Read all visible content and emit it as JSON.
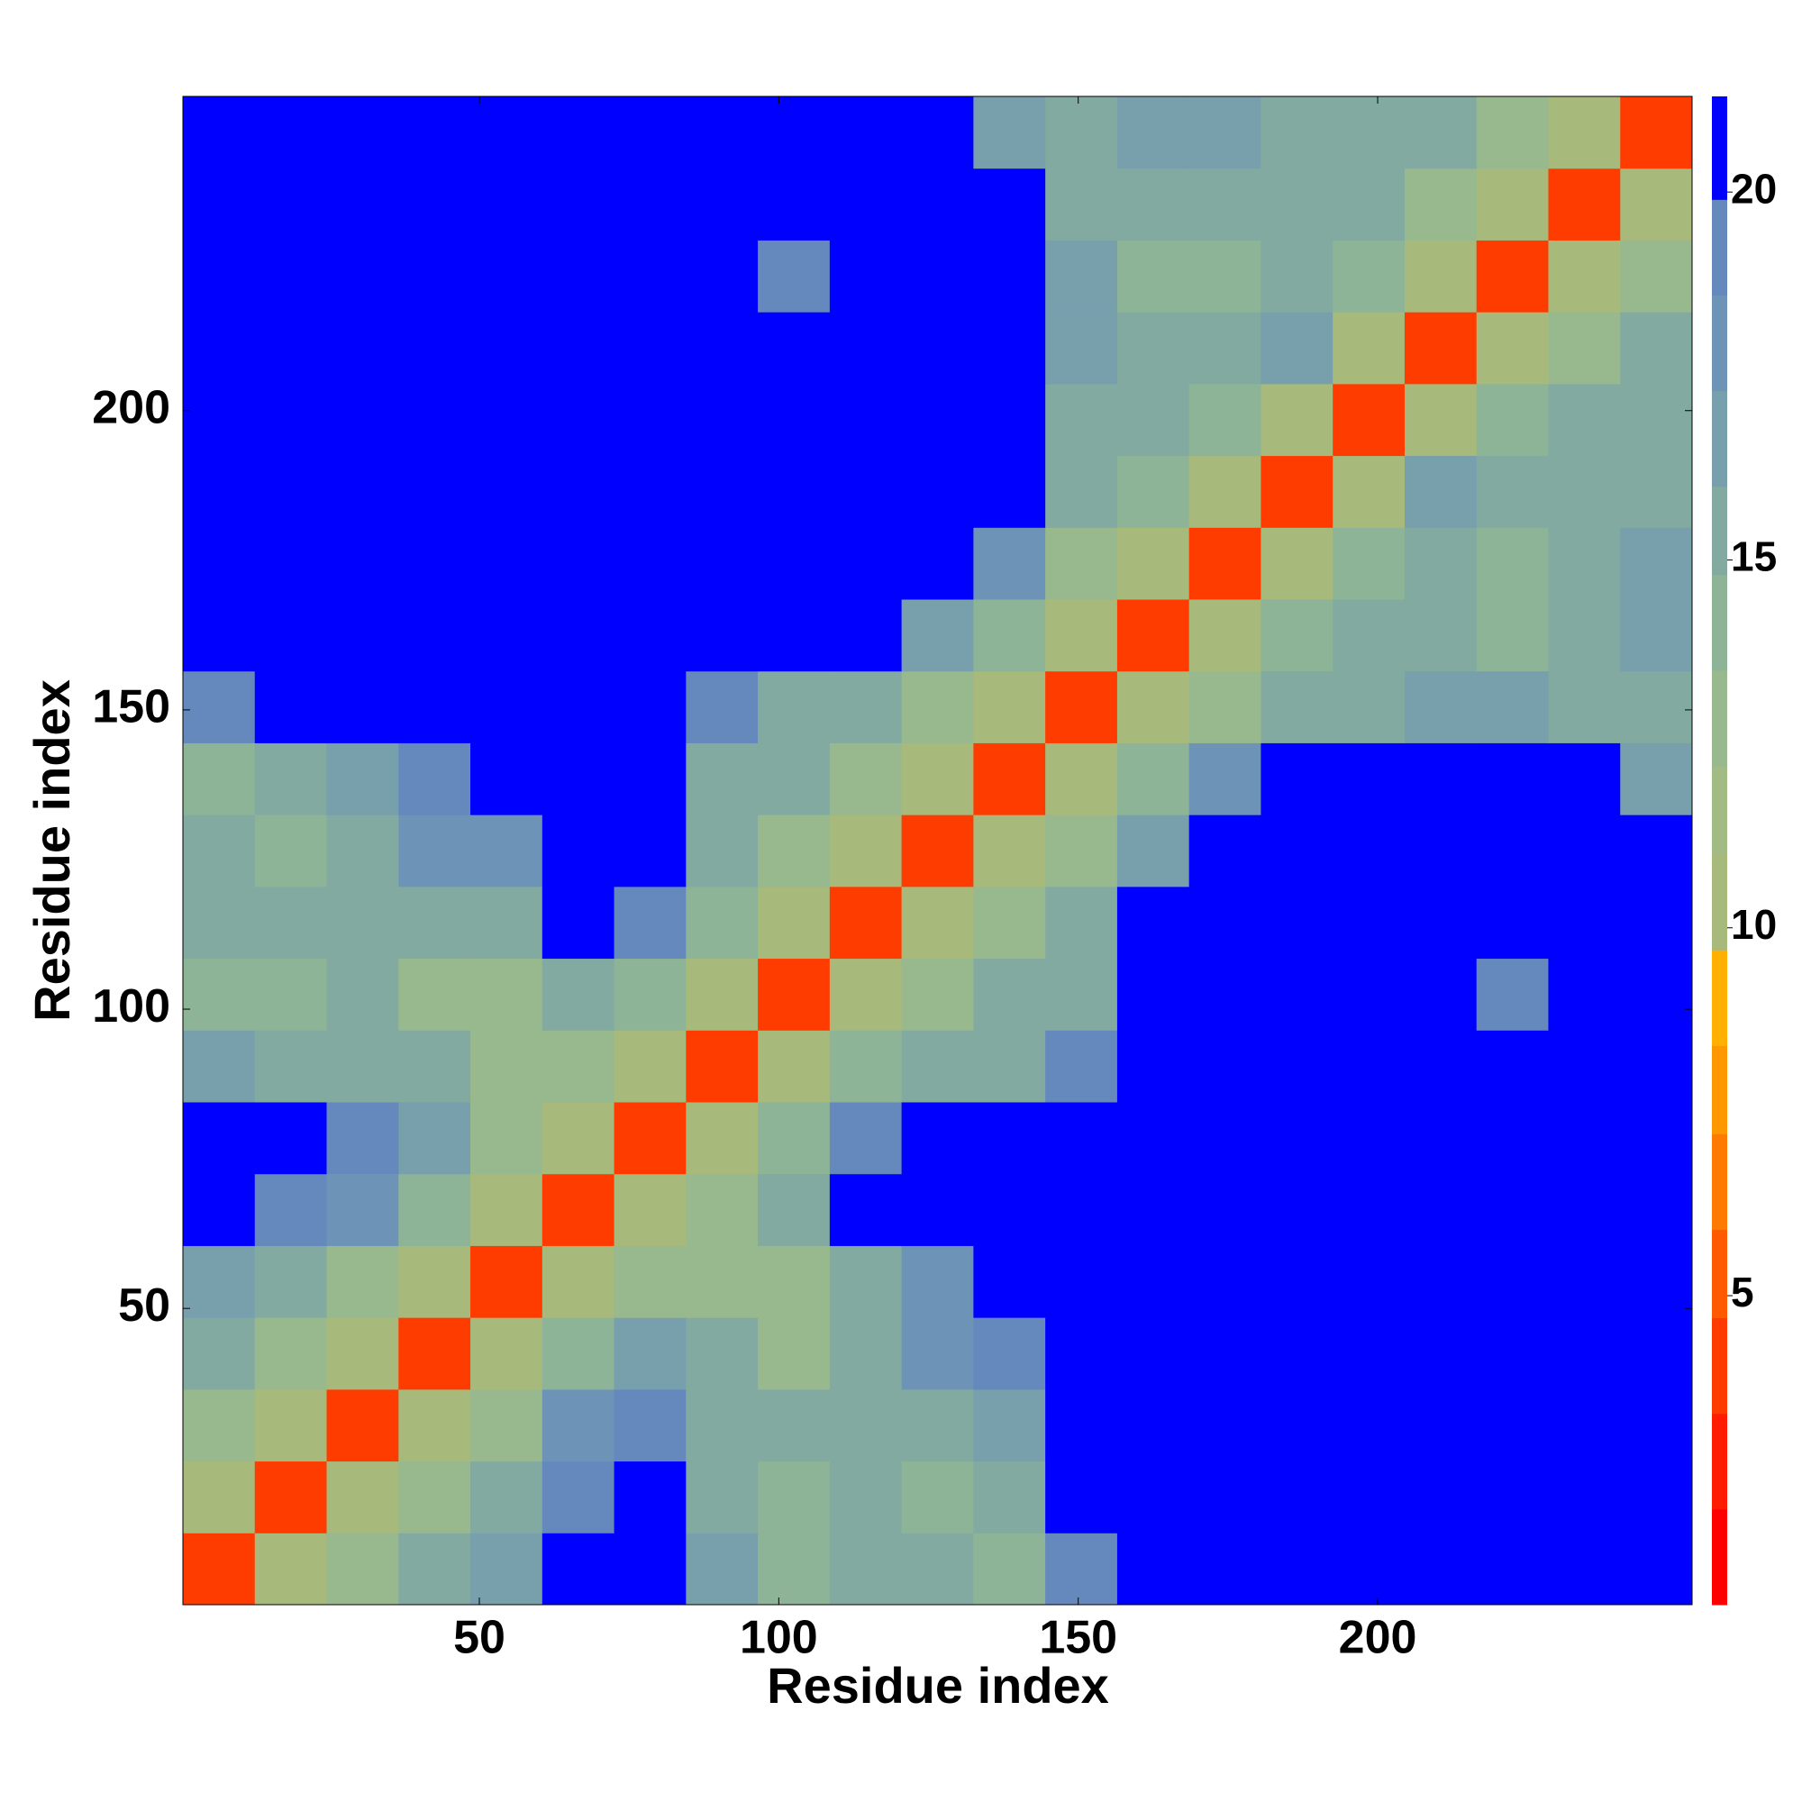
{
  "chart_data": {
    "type": "heatmap",
    "xlabel": "Residue index",
    "ylabel": "Residue index",
    "xlim": [
      0.5,
      252.5
    ],
    "ylim": [
      0.5,
      252.5
    ],
    "xticks": [
      50,
      100,
      150,
      200
    ],
    "yticks": [
      50,
      100,
      150,
      200
    ],
    "x_edges": [
      0.5,
      12.5,
      24.5,
      36.5,
      48.5,
      60.5,
      72.5,
      84.5,
      96.5,
      108.5,
      120.5,
      132.5,
      144.5,
      156.5,
      168.5,
      180.5,
      192.5,
      204.5,
      216.5,
      228.5,
      240.5,
      252.5
    ],
    "y_edges": [
      0.5,
      12.5,
      24.5,
      36.5,
      48.5,
      60.5,
      72.5,
      84.5,
      96.5,
      108.5,
      120.5,
      132.5,
      144.5,
      156.5,
      168.5,
      180.5,
      192.5,
      204.5,
      216.5,
      228.5,
      240.5,
      252.5
    ],
    "z": [
      [
        4,
        11,
        13,
        15,
        17,
        21,
        21,
        17,
        14,
        15,
        15,
        14,
        19,
        21,
        21,
        21,
        21,
        21,
        21,
        21,
        21
      ],
      [
        11,
        4,
        11,
        13,
        15,
        19,
        21,
        16,
        14,
        15,
        14,
        15,
        21,
        21,
        21,
        21,
        21,
        21,
        21,
        21,
        21
      ],
      [
        13,
        11,
        4,
        11,
        13,
        18,
        19,
        16,
        15,
        16,
        16,
        17,
        21,
        21,
        21,
        21,
        21,
        21,
        21,
        21,
        21
      ],
      [
        15,
        13,
        11,
        4,
        11,
        14,
        17,
        15,
        13,
        15,
        18,
        19,
        21,
        21,
        21,
        21,
        21,
        21,
        21,
        21,
        21
      ],
      [
        17,
        15,
        13,
        11,
        4,
        11,
        13,
        13,
        13,
        16,
        18,
        20,
        21,
        21,
        21,
        21,
        21,
        21,
        21,
        21,
        21
      ],
      [
        21,
        19,
        18,
        14,
        11,
        4,
        11,
        13,
        15,
        20,
        21,
        21,
        21,
        21,
        21,
        21,
        21,
        21,
        21,
        21,
        21
      ],
      [
        21,
        21,
        19,
        17,
        13,
        11,
        4,
        11,
        14,
        19,
        21,
        21,
        21,
        21,
        21,
        21,
        21,
        21,
        21,
        21,
        21
      ],
      [
        17,
        16,
        16,
        15,
        13,
        13,
        11,
        4,
        11,
        14,
        15,
        16,
        19,
        21,
        21,
        21,
        21,
        21,
        21,
        21,
        21
      ],
      [
        14,
        14,
        15,
        13,
        13,
        15,
        14,
        11,
        4,
        11,
        13,
        15,
        16,
        21,
        20,
        21,
        21,
        21,
        19,
        21,
        21
      ],
      [
        15,
        15,
        16,
        15,
        16,
        20,
        19,
        14,
        11,
        4,
        11,
        13,
        16,
        20,
        21,
        21,
        21,
        21,
        21,
        21,
        21
      ],
      [
        15,
        14,
        16,
        18,
        18,
        21,
        21,
        15,
        13,
        11,
        4,
        11,
        13,
        17,
        21,
        21,
        21,
        21,
        21,
        21,
        21
      ],
      [
        14,
        15,
        17,
        19,
        20,
        21,
        21,
        16,
        15,
        13,
        11,
        4,
        11,
        14,
        18,
        21,
        21,
        21,
        21,
        21,
        17
      ],
      [
        19,
        21,
        21,
        21,
        21,
        21,
        21,
        19,
        16,
        16,
        13,
        11,
        4,
        11,
        13,
        15,
        16,
        17,
        17,
        16,
        16
      ],
      [
        21,
        21,
        21,
        21,
        21,
        21,
        21,
        21,
        21,
        20,
        17,
        14,
        11,
        4,
        11,
        14,
        15,
        16,
        14,
        16,
        17
      ],
      [
        21,
        21,
        21,
        21,
        21,
        21,
        21,
        21,
        20,
        21,
        21,
        18,
        13,
        11,
        4,
        11,
        14,
        15,
        14,
        15,
        17
      ],
      [
        21,
        21,
        21,
        21,
        21,
        21,
        21,
        21,
        21,
        21,
        21,
        21,
        15,
        14,
        11,
        4,
        11,
        17,
        16,
        15,
        16
      ],
      [
        21,
        21,
        21,
        21,
        21,
        21,
        21,
        21,
        21,
        21,
        21,
        21,
        16,
        15,
        14,
        11,
        4,
        11,
        14,
        15,
        16
      ],
      [
        21,
        21,
        21,
        21,
        21,
        21,
        21,
        21,
        21,
        21,
        21,
        21,
        17,
        16,
        15,
        17,
        11,
        4,
        11,
        13,
        15
      ],
      [
        21,
        21,
        21,
        21,
        21,
        21,
        21,
        21,
        19,
        21,
        21,
        21,
        17,
        14,
        14,
        16,
        14,
        11,
        4,
        11,
        13
      ],
      [
        21,
        21,
        21,
        21,
        21,
        21,
        21,
        21,
        21,
        21,
        21,
        21,
        16,
        16,
        15,
        15,
        15,
        13,
        11,
        4,
        11
      ],
      [
        21,
        21,
        21,
        21,
        21,
        21,
        21,
        21,
        21,
        21,
        21,
        17,
        16,
        17,
        17,
        16,
        16,
        15,
        13,
        11,
        4
      ]
    ],
    "colorbar": {
      "clim": [
        0.8,
        21.3
      ],
      "ticks": [
        5,
        10,
        15,
        20
      ],
      "levels": [
        0.8,
        2.1,
        3.4,
        4.7,
        5.9,
        7.2,
        8.4,
        9.7,
        11,
        12.2,
        13.5,
        14.8,
        16,
        17.3,
        18.6,
        19.9,
        21.3
      ],
      "colors": [
        "#ff0000",
        "#ff1c00",
        "#ff3c00",
        "#ff5a00",
        "#ff7a00",
        "#ff9800",
        "#ffb000",
        "#a8b97c",
        "#a2bb84",
        "#98b98d",
        "#8db496",
        "#82aaa1",
        "#779fac",
        "#6d94b6",
        "#6589bd",
        "#0000ff"
      ]
    }
  }
}
